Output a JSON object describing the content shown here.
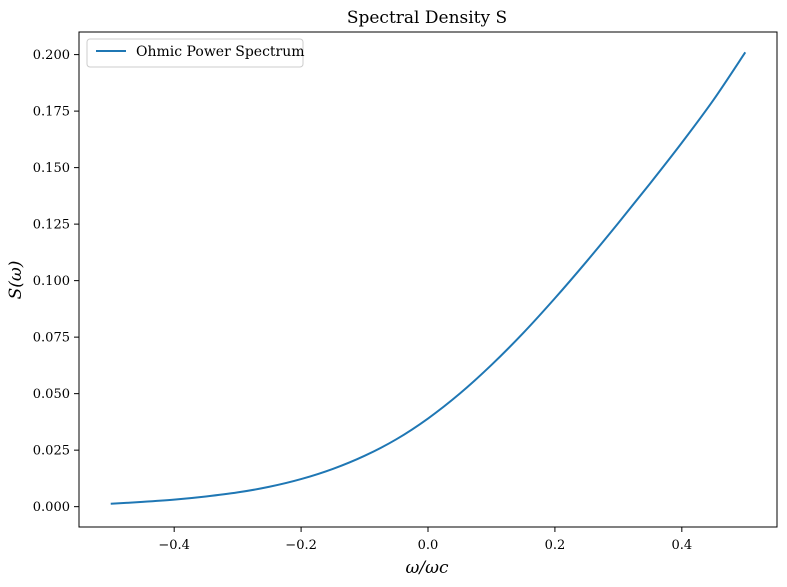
{
  "chart_data": {
    "type": "line",
    "title": "Spectral Density S",
    "xlabel": "ω/ωc",
    "ylabel": "S(ω)",
    "xlim": [
      -0.55,
      0.55
    ],
    "ylim": [
      -0.009,
      0.21
    ],
    "xticks": [
      -0.4,
      -0.2,
      0.0,
      0.2,
      0.4
    ],
    "xtick_labels": [
      "−0.4",
      "−0.2",
      "0.0",
      "0.2",
      "0.4"
    ],
    "yticks": [
      0.0,
      0.025,
      0.05,
      0.075,
      0.1,
      0.125,
      0.15,
      0.175,
      0.2
    ],
    "ytick_labels": [
      "0.000",
      "0.025",
      "0.050",
      "0.075",
      "0.100",
      "0.125",
      "0.150",
      "0.175",
      "0.200"
    ],
    "grid": false,
    "legend": {
      "position": "upper-left",
      "entries": [
        "Ohmic Power Spectrum"
      ]
    },
    "series": [
      {
        "name": "Ohmic Power Spectrum",
        "color": "#1f77b4",
        "x": [
          -0.5,
          -0.45,
          -0.4,
          -0.35,
          -0.3,
          -0.25,
          -0.2,
          -0.15,
          -0.1,
          -0.05,
          0.0,
          0.05,
          0.1,
          0.15,
          0.2,
          0.25,
          0.3,
          0.35,
          0.4,
          0.45,
          0.5
        ],
        "y": [
          0.0013,
          0.0021,
          0.0031,
          0.0045,
          0.0063,
          0.0088,
          0.0122,
          0.0167,
          0.0225,
          0.0298,
          0.039,
          0.05,
          0.0627,
          0.0768,
          0.0922,
          0.1085,
          0.1255,
          0.143,
          0.161,
          0.18,
          0.201
        ]
      }
    ]
  }
}
